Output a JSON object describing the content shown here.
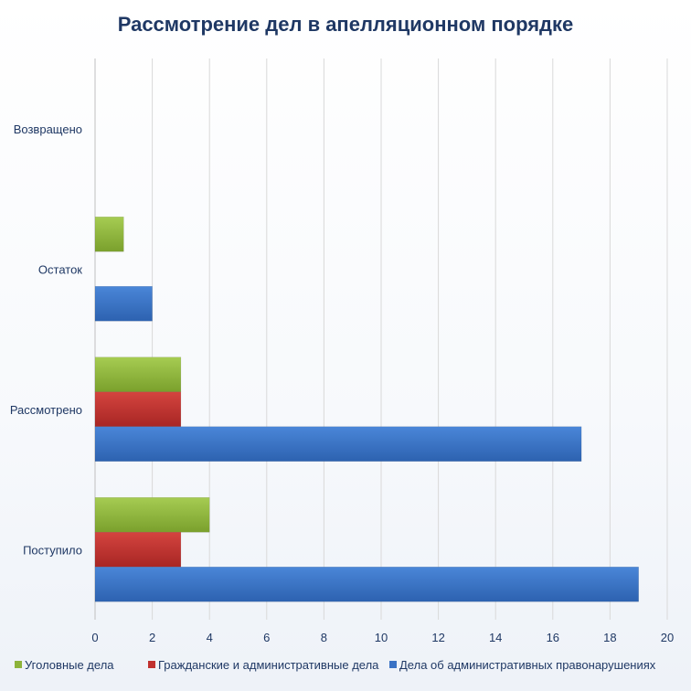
{
  "chart_data": {
    "type": "bar",
    "orientation": "horizontal",
    "title": "Рассмотрение дел в апелляционном порядке",
    "categories": [
      "Поступило",
      "Рассмотрено",
      "Остаток",
      "Возвращено"
    ],
    "series": [
      {
        "name": "Уголовные дела",
        "color": "#8db33a",
        "values": [
          4,
          3,
          1,
          0
        ]
      },
      {
        "name": "Гражданские и административные дела",
        "color": "#c0312f",
        "values": [
          3,
          3,
          0,
          0
        ]
      },
      {
        "name": "Дела об административных правонарушениях",
        "color": "#3a72c4",
        "values": [
          19,
          17,
          2,
          0
        ]
      }
    ],
    "xlim": [
      0,
      20
    ],
    "xticks": [
      "0",
      "2",
      "4",
      "6",
      "8",
      "10",
      "12",
      "14",
      "16",
      "18",
      "20"
    ],
    "grid": true,
    "legend": "bottom"
  }
}
